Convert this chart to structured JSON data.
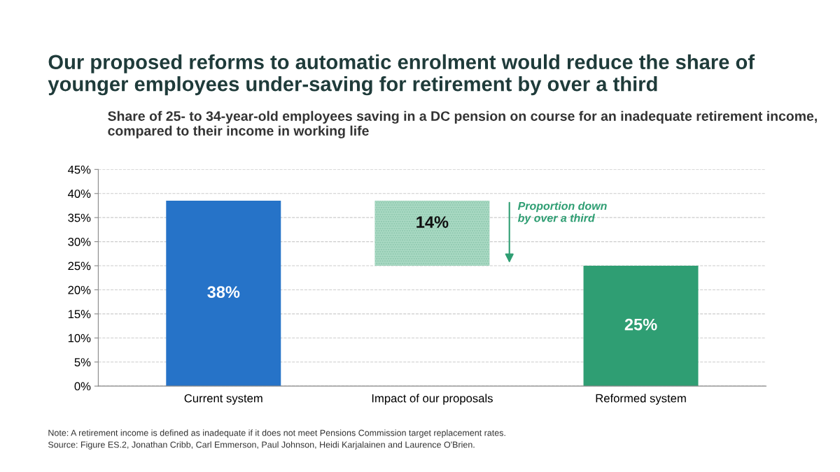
{
  "chart_data": {
    "type": "bar",
    "title": "Our proposed reforms to automatic enrolment would reduce the share of younger employees under-saving for retirement by over a third",
    "subtitle": "Share of 25- to 34-year-old employees saving in a DC pension on course for an inadequate retirement income, compared to their income in working life",
    "categories": [
      "Current system",
      "Impact of our proposals",
      "Reformed system"
    ],
    "values": [
      38.5,
      13.5,
      25
    ],
    "base": [
      0,
      25,
      0
    ],
    "colors": [
      "#2673c8",
      "#a9d9c3",
      "#2f9e73"
    ],
    "value_labels": [
      "38%",
      "14%",
      "25%"
    ],
    "ylim": [
      0,
      45
    ],
    "yticks": [
      {
        "value": 0,
        "label": "0%"
      },
      {
        "value": 5,
        "label": "5%"
      },
      {
        "value": 10,
        "label": "10%"
      },
      {
        "value": 15,
        "label": "15%"
      },
      {
        "value": 20,
        "label": "20%"
      },
      {
        "value": 25,
        "label": "25%"
      },
      {
        "value": 30,
        "label": "30%"
      },
      {
        "value": 35,
        "label": "35%"
      },
      {
        "value": 40,
        "label": "40%"
      },
      {
        "value": 45,
        "label": "45%"
      }
    ],
    "grid": "y",
    "legend": false,
    "annotations": [
      "Proportion down\nby over a third",
      "Note: A retirement income is defined as inadequate if it does not meet Pensions Commission target replacement rates.",
      "Source: Figure ES.2, Jonathan Cribb, Carl Emmerson, Paul Johnson, Heidi Karjalainen and Laurence O'Brien."
    ]
  }
}
